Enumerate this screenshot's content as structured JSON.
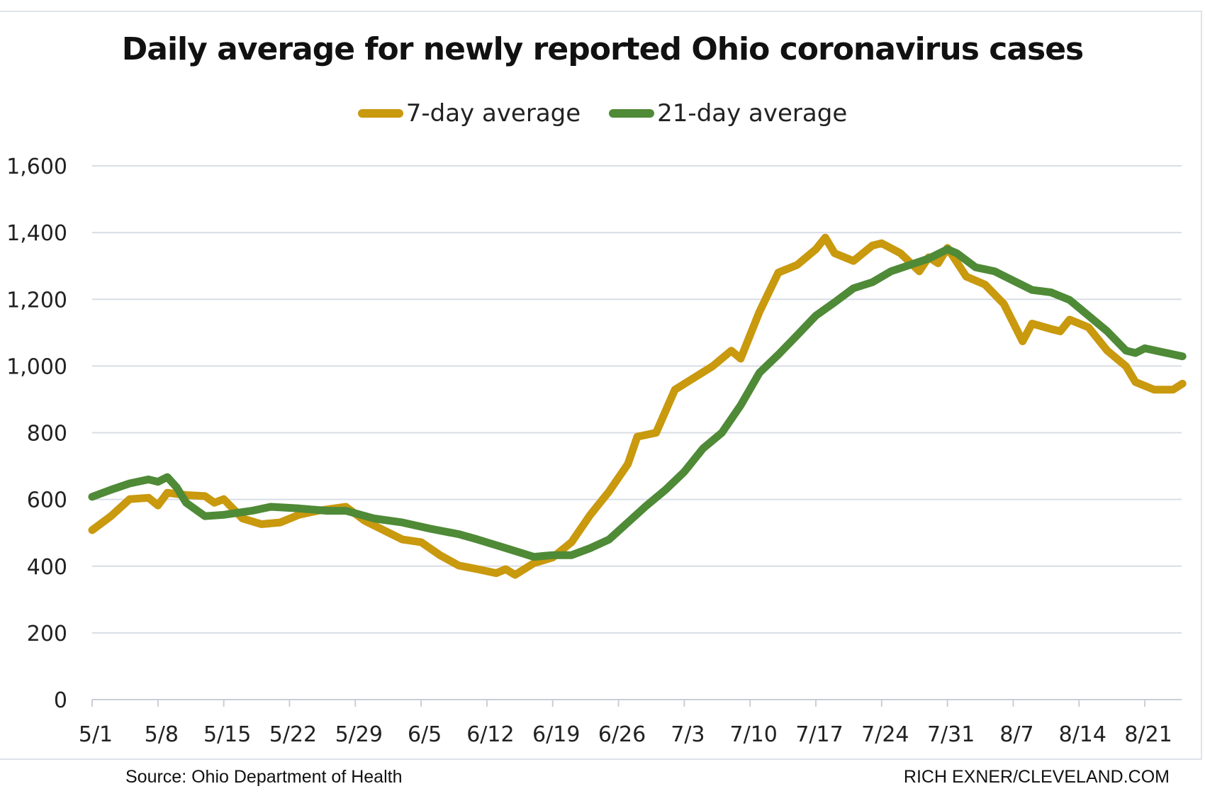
{
  "colors": {
    "seven_day": "#C9990E",
    "twenty_one_day": "#4F8A37",
    "grid": "#d9dde6"
  },
  "chart_data": {
    "type": "line",
    "title": "Daily average for newly reported Ohio coronavirus cases",
    "xlabel": "",
    "ylabel": "",
    "ylim": [
      0,
      1600
    ],
    "yticks": [
      "0",
      "200",
      "400",
      "600",
      "800",
      "1,000",
      "1,200",
      "1,400",
      "1,600"
    ],
    "ytick_values": [
      0,
      200,
      400,
      600,
      800,
      1000,
      1200,
      1400,
      1600
    ],
    "xticks": [
      "5/1",
      "5/8",
      "5/15",
      "5/22",
      "5/29",
      "6/5",
      "6/12",
      "6/19",
      "6/26",
      "7/3",
      "7/10",
      "7/17",
      "7/24",
      "7/31",
      "8/7",
      "8/14",
      "8/21"
    ],
    "grid": true,
    "legend_position": "top-center",
    "series": [
      {
        "name": "7-day average",
        "x": [
          "5/1",
          "5/3",
          "5/5",
          "5/7",
          "5/8",
          "5/9",
          "5/11",
          "5/13",
          "5/14",
          "5/15",
          "5/17",
          "5/19",
          "5/21",
          "5/23",
          "5/25",
          "5/28",
          "5/30",
          "6/1",
          "6/3",
          "6/5",
          "6/7",
          "6/9",
          "6/11",
          "6/13",
          "6/14",
          "6/15",
          "6/17",
          "6/19",
          "6/21",
          "6/23",
          "6/25",
          "6/27",
          "6/28",
          "6/30",
          "7/2",
          "7/4",
          "7/6",
          "7/8",
          "7/9",
          "7/11",
          "7/13",
          "7/15",
          "7/17",
          "7/18",
          "7/19",
          "7/21",
          "7/23",
          "7/24",
          "7/26",
          "7/28",
          "7/29",
          "7/30",
          "7/31",
          "8/2",
          "8/4",
          "8/6",
          "8/8",
          "8/9",
          "8/11",
          "8/12",
          "8/13",
          "8/15",
          "8/17",
          "8/19",
          "8/20",
          "8/22",
          "8/24",
          "8/25"
        ],
        "values": [
          508,
          550,
          601,
          605,
          582,
          620,
          613,
          610,
          590,
          601,
          543,
          526,
          531,
          554,
          566,
          578,
          536,
          508,
          480,
          472,
          433,
          402,
          391,
          379,
          391,
          374,
          409,
          426,
          472,
          554,
          624,
          706,
          788,
          800,
          929,
          964,
          999,
          1046,
          1022,
          1163,
          1280,
          1303,
          1350,
          1385,
          1338,
          1315,
          1361,
          1368,
          1338,
          1284,
          1326,
          1308,
          1354,
          1268,
          1244,
          1186,
          1074,
          1127,
          1111,
          1104,
          1139,
          1116,
          1046,
          999,
          952,
          929,
          929,
          947
        ]
      },
      {
        "name": "21-day average",
        "x": [
          "5/1",
          "5/3",
          "5/5",
          "5/7",
          "5/8",
          "5/9",
          "5/10",
          "5/11",
          "5/13",
          "5/15",
          "5/18",
          "5/20",
          "5/23",
          "5/26",
          "5/28",
          "5/31",
          "6/3",
          "6/6",
          "6/9",
          "6/11",
          "6/14",
          "6/17",
          "6/19",
          "6/21",
          "6/23",
          "6/25",
          "6/27",
          "6/29",
          "7/1",
          "7/3",
          "7/5",
          "7/7",
          "7/9",
          "7/11",
          "7/13",
          "7/15",
          "7/17",
          "7/19",
          "7/21",
          "7/23",
          "7/25",
          "7/27",
          "7/29",
          "7/31",
          "8/1",
          "8/3",
          "8/5",
          "8/7",
          "8/9",
          "8/11",
          "8/13",
          "8/15",
          "8/17",
          "8/19",
          "8/20",
          "8/21",
          "8/23",
          "8/25"
        ],
        "values": [
          608,
          629,
          648,
          660,
          653,
          667,
          636,
          590,
          550,
          554,
          566,
          578,
          573,
          566,
          566,
          543,
          531,
          512,
          496,
          480,
          454,
          428,
          433,
          433,
          454,
          480,
          531,
          582,
          629,
          683,
          753,
          800,
          882,
          980,
          1034,
          1092,
          1151,
          1191,
          1233,
          1251,
          1284,
          1303,
          1322,
          1350,
          1338,
          1296,
          1284,
          1256,
          1228,
          1221,
          1198,
          1151,
          1104,
          1046,
          1039,
          1053,
          1041,
          1029
        ]
      }
    ]
  },
  "footer": {
    "source": "Source: Ohio Department of Health",
    "credit": "RICH EXNER/CLEVELAND.COM"
  }
}
